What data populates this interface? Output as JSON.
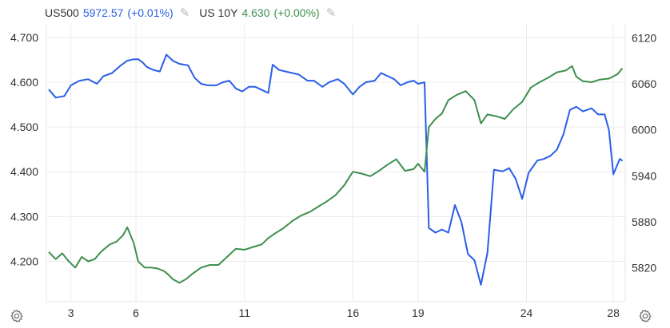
{
  "legend": {
    "us500": {
      "symbol": "US500",
      "value": "5972.57",
      "change": "(+0.01%)",
      "color": "#2a5ee8"
    },
    "us10y": {
      "symbol": "US 10Y",
      "value": "4.630",
      "change": "(+0.00%)",
      "color": "#3f8f4f"
    }
  },
  "icons": {
    "edit": "pencil-icon",
    "settings": "gear-icon"
  },
  "chart_data": {
    "type": "line",
    "x_ticks": [
      {
        "label": "3",
        "x": 3
      },
      {
        "label": "6",
        "x": 6
      },
      {
        "label": "11",
        "x": 11
      },
      {
        "label": "16",
        "x": 16
      },
      {
        "label": "19",
        "x": 19
      },
      {
        "label": "24",
        "x": 24
      },
      {
        "label": "28",
        "x": 28
      }
    ],
    "left_axis": {
      "ticks": [
        "4.200",
        "4.300",
        "4.400",
        "4.500",
        "4.600",
        "4.700"
      ],
      "range": [
        4.11,
        4.73
      ]
    },
    "right_axis": {
      "ticks": [
        "5820",
        "5880",
        "5940",
        "6000",
        "6060",
        "6120"
      ],
      "range": [
        5776,
        6138
      ]
    },
    "grid": true,
    "series": [
      {
        "name": "US500",
        "axis": "right",
        "color": "#2a5ee8",
        "points": [
          [
            2.0,
            6052
          ],
          [
            2.3,
            6042
          ],
          [
            2.7,
            6044
          ],
          [
            3.0,
            6058
          ],
          [
            3.4,
            6064
          ],
          [
            3.8,
            6066
          ],
          [
            4.2,
            6060
          ],
          [
            4.5,
            6070
          ],
          [
            4.9,
            6074
          ],
          [
            5.3,
            6084
          ],
          [
            5.6,
            6090
          ],
          [
            5.9,
            6092
          ],
          [
            6.1,
            6092
          ],
          [
            6.3,
            6088
          ],
          [
            6.5,
            6082
          ],
          [
            6.8,
            6078
          ],
          [
            7.1,
            6076
          ],
          [
            7.4,
            6098
          ],
          [
            7.7,
            6090
          ],
          [
            8.0,
            6086
          ],
          [
            8.4,
            6084
          ],
          [
            8.7,
            6068
          ],
          [
            9.0,
            6060
          ],
          [
            9.3,
            6058
          ],
          [
            9.7,
            6058
          ],
          [
            10.0,
            6062
          ],
          [
            10.3,
            6064
          ],
          [
            10.6,
            6054
          ],
          [
            10.9,
            6050
          ],
          [
            11.2,
            6056
          ],
          [
            11.5,
            6056
          ],
          [
            11.8,
            6052
          ],
          [
            12.1,
            6048
          ],
          [
            12.3,
            6085
          ],
          [
            12.6,
            6078
          ],
          [
            12.9,
            6076
          ],
          [
            13.2,
            6074
          ],
          [
            13.5,
            6072
          ],
          [
            13.9,
            6064
          ],
          [
            14.2,
            6064
          ],
          [
            14.6,
            6056
          ],
          [
            14.9,
            6062
          ],
          [
            15.3,
            6066
          ],
          [
            15.6,
            6060
          ],
          [
            16.0,
            6046
          ],
          [
            16.3,
            6056
          ],
          [
            16.6,
            6062
          ],
          [
            17.0,
            6064
          ],
          [
            17.3,
            6074
          ],
          [
            17.6,
            6070
          ],
          [
            17.9,
            6066
          ],
          [
            18.2,
            6058
          ],
          [
            18.5,
            6062
          ],
          [
            18.8,
            6064
          ],
          [
            19.0,
            6060
          ],
          [
            19.3,
            6062
          ],
          [
            19.5,
            5872
          ],
          [
            19.8,
            5866
          ],
          [
            20.1,
            5870
          ],
          [
            20.4,
            5866
          ],
          [
            20.7,
            5902
          ],
          [
            21.0,
            5880
          ],
          [
            21.3,
            5838
          ],
          [
            21.6,
            5830
          ],
          [
            21.9,
            5798
          ],
          [
            22.2,
            5840
          ],
          [
            22.5,
            5948
          ],
          [
            22.9,
            5946
          ],
          [
            23.2,
            5950
          ],
          [
            23.5,
            5936
          ],
          [
            23.8,
            5910
          ],
          [
            24.1,
            5944
          ],
          [
            24.5,
            5960
          ],
          [
            24.8,
            5962
          ],
          [
            25.1,
            5966
          ],
          [
            25.4,
            5974
          ],
          [
            25.7,
            5994
          ],
          [
            26.0,
            6026
          ],
          [
            26.3,
            6030
          ],
          [
            26.6,
            6024
          ],
          [
            27.0,
            6028
          ],
          [
            27.3,
            6020
          ],
          [
            27.6,
            6020
          ],
          [
            27.8,
            6000
          ],
          [
            28.0,
            5942
          ],
          [
            28.3,
            5962
          ],
          [
            28.4,
            5960
          ]
        ]
      },
      {
        "name": "US 10Y",
        "axis": "left",
        "color": "#3f8f4f",
        "points": [
          [
            2.0,
            4.22
          ],
          [
            2.3,
            4.205
          ],
          [
            2.6,
            4.218
          ],
          [
            2.9,
            4.2
          ],
          [
            3.2,
            4.186
          ],
          [
            3.5,
            4.21
          ],
          [
            3.8,
            4.2
          ],
          [
            4.1,
            4.205
          ],
          [
            4.4,
            4.222
          ],
          [
            4.8,
            4.238
          ],
          [
            5.1,
            4.244
          ],
          [
            5.4,
            4.258
          ],
          [
            5.6,
            4.276
          ],
          [
            5.9,
            4.24
          ],
          [
            6.1,
            4.2
          ],
          [
            6.4,
            4.186
          ],
          [
            6.7,
            4.186
          ],
          [
            7.0,
            4.184
          ],
          [
            7.3,
            4.178
          ],
          [
            7.5,
            4.17
          ],
          [
            7.7,
            4.16
          ],
          [
            8.0,
            4.152
          ],
          [
            8.3,
            4.16
          ],
          [
            8.6,
            4.172
          ],
          [
            9.0,
            4.186
          ],
          [
            9.4,
            4.192
          ],
          [
            9.8,
            4.192
          ],
          [
            10.2,
            4.21
          ],
          [
            10.6,
            4.228
          ],
          [
            11.0,
            4.226
          ],
          [
            11.4,
            4.232
          ],
          [
            11.8,
            4.238
          ],
          [
            12.1,
            4.252
          ],
          [
            12.4,
            4.262
          ],
          [
            12.8,
            4.274
          ],
          [
            13.2,
            4.29
          ],
          [
            13.6,
            4.302
          ],
          [
            14.0,
            4.31
          ],
          [
            14.4,
            4.322
          ],
          [
            14.8,
            4.334
          ],
          [
            15.2,
            4.348
          ],
          [
            15.6,
            4.37
          ],
          [
            16.0,
            4.4
          ],
          [
            16.4,
            4.396
          ],
          [
            16.8,
            4.39
          ],
          [
            17.2,
            4.402
          ],
          [
            17.6,
            4.416
          ],
          [
            18.0,
            4.428
          ],
          [
            18.4,
            4.402
          ],
          [
            18.8,
            4.406
          ],
          [
            19.0,
            4.418
          ],
          [
            19.3,
            4.4
          ],
          [
            19.5,
            4.5
          ],
          [
            19.8,
            4.518
          ],
          [
            20.1,
            4.53
          ],
          [
            20.4,
            4.56
          ],
          [
            20.8,
            4.572
          ],
          [
            21.2,
            4.58
          ],
          [
            21.6,
            4.56
          ],
          [
            21.9,
            4.508
          ],
          [
            22.2,
            4.528
          ],
          [
            22.6,
            4.524
          ],
          [
            23.0,
            4.518
          ],
          [
            23.4,
            4.54
          ],
          [
            23.8,
            4.556
          ],
          [
            24.2,
            4.588
          ],
          [
            24.6,
            4.6
          ],
          [
            25.0,
            4.61
          ],
          [
            25.4,
            4.622
          ],
          [
            25.8,
            4.626
          ],
          [
            26.1,
            4.636
          ],
          [
            26.3,
            4.612
          ],
          [
            26.6,
            4.602
          ],
          [
            27.0,
            4.6
          ],
          [
            27.4,
            4.606
          ],
          [
            27.8,
            4.608
          ],
          [
            28.2,
            4.618
          ],
          [
            28.4,
            4.63
          ]
        ]
      }
    ]
  }
}
